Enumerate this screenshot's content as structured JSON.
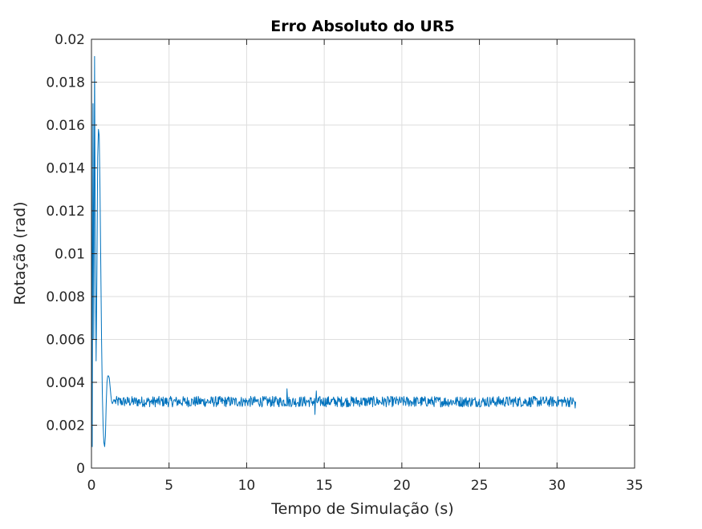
{
  "chart_data": {
    "type": "line",
    "title": "Erro Absoluto do UR5",
    "xlabel": "Tempo de Simulação (s)",
    "ylabel": "Rotação (rad)",
    "xlim": [
      0,
      35
    ],
    "ylim": [
      0,
      0.02
    ],
    "xticks": [
      0,
      5,
      10,
      15,
      20,
      25,
      30,
      35
    ],
    "xtick_labels": [
      "0",
      "5",
      "10",
      "15",
      "20",
      "25",
      "30",
      "35"
    ],
    "yticks": [
      0,
      0.002,
      0.004,
      0.006,
      0.008,
      0.01,
      0.012,
      0.014,
      0.016,
      0.018,
      0.02
    ],
    "ytick_labels": [
      "0",
      "0.002",
      "0.004",
      "0.006",
      "0.008",
      "0.01",
      "0.012",
      "0.014",
      "0.016",
      "0.018",
      "0.02"
    ],
    "grid": true,
    "series": [
      {
        "color": "#0072BD",
        "transient": {
          "x": [
            0,
            0.05,
            0.1,
            0.15,
            0.2,
            0.25,
            0.3,
            0.35,
            0.4,
            0.45,
            0.5,
            0.55,
            0.6,
            0.65,
            0.7,
            0.75,
            0.8,
            0.85,
            0.9,
            0.95,
            1.0,
            1.05,
            1.1,
            1.15,
            1.2,
            1.25,
            1.3,
            1.35,
            1.4,
            1.45,
            1.5
          ],
          "y": [
            0.0195,
            0.001,
            0.017,
            0.006,
            0.0192,
            0.01,
            0.005,
            0.009,
            0.0145,
            0.0158,
            0.0155,
            0.013,
            0.0095,
            0.006,
            0.0035,
            0.002,
            0.0012,
            0.001,
            0.0015,
            0.003,
            0.004,
            0.0043,
            0.0043,
            0.0042,
            0.0038,
            0.0034,
            0.0031,
            0.003,
            0.0031,
            0.0032,
            0.0031
          ]
        },
        "steady": {
          "x_start": 1.5,
          "x_end": 31.2,
          "mean": 0.0031,
          "noise_amplitude": 0.00025,
          "spikes": [
            {
              "x": 12.6,
              "y": 0.0037
            },
            {
              "x": 14.4,
              "y": 0.0025
            },
            {
              "x": 14.5,
              "y": 0.0036
            },
            {
              "x": 31.2,
              "y": 0.0028
            }
          ]
        }
      }
    ]
  }
}
